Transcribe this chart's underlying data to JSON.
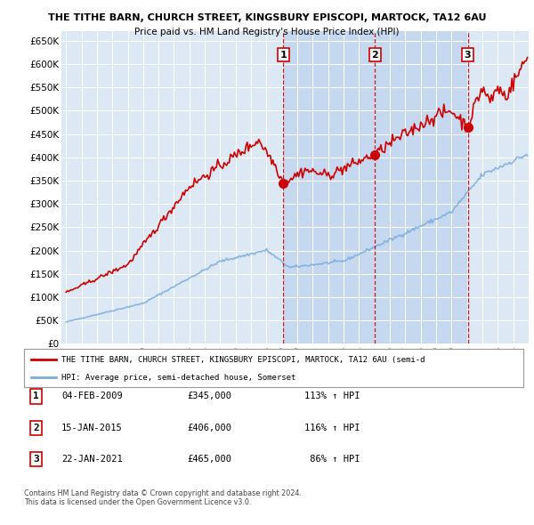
{
  "title1": "THE TITHE BARN, CHURCH STREET, KINGSBURY EPISCOPI, MARTOCK, TA12 6AU",
  "title2": "Price paid vs. HM Land Registry's House Price Index (HPI)",
  "bg_color": "#dce9f5",
  "shade_color": "#c5d8f0",
  "ylim": [
    0,
    670000
  ],
  "yticks": [
    0,
    50000,
    100000,
    150000,
    200000,
    250000,
    300000,
    350000,
    400000,
    450000,
    500000,
    550000,
    600000,
    650000
  ],
  "sale_dates": [
    2009.08,
    2015.04,
    2021.05
  ],
  "sale_prices": [
    345000,
    406000,
    465000
  ],
  "sale_labels": [
    "1",
    "2",
    "3"
  ],
  "legend_line1": "THE TITHE BARN, CHURCH STREET, KINGSBURY EPISCOPI, MARTOCK, TA12 6AU (semi-d",
  "legend_line2": "HPI: Average price, semi-detached house, Somerset",
  "table_rows": [
    [
      "1",
      "04-FEB-2009",
      "£345,000",
      "113% ↑ HPI"
    ],
    [
      "2",
      "15-JAN-2015",
      "£406,000",
      "116% ↑ HPI"
    ],
    [
      "3",
      "22-JAN-2021",
      "£465,000",
      " 86% ↑ HPI"
    ]
  ],
  "footer": "Contains HM Land Registry data © Crown copyright and database right 2024.\nThis data is licensed under the Open Government Licence v3.0.",
  "red_color": "#cc0000",
  "blue_color": "#7aabdb",
  "grid_color": "#bbccdd"
}
